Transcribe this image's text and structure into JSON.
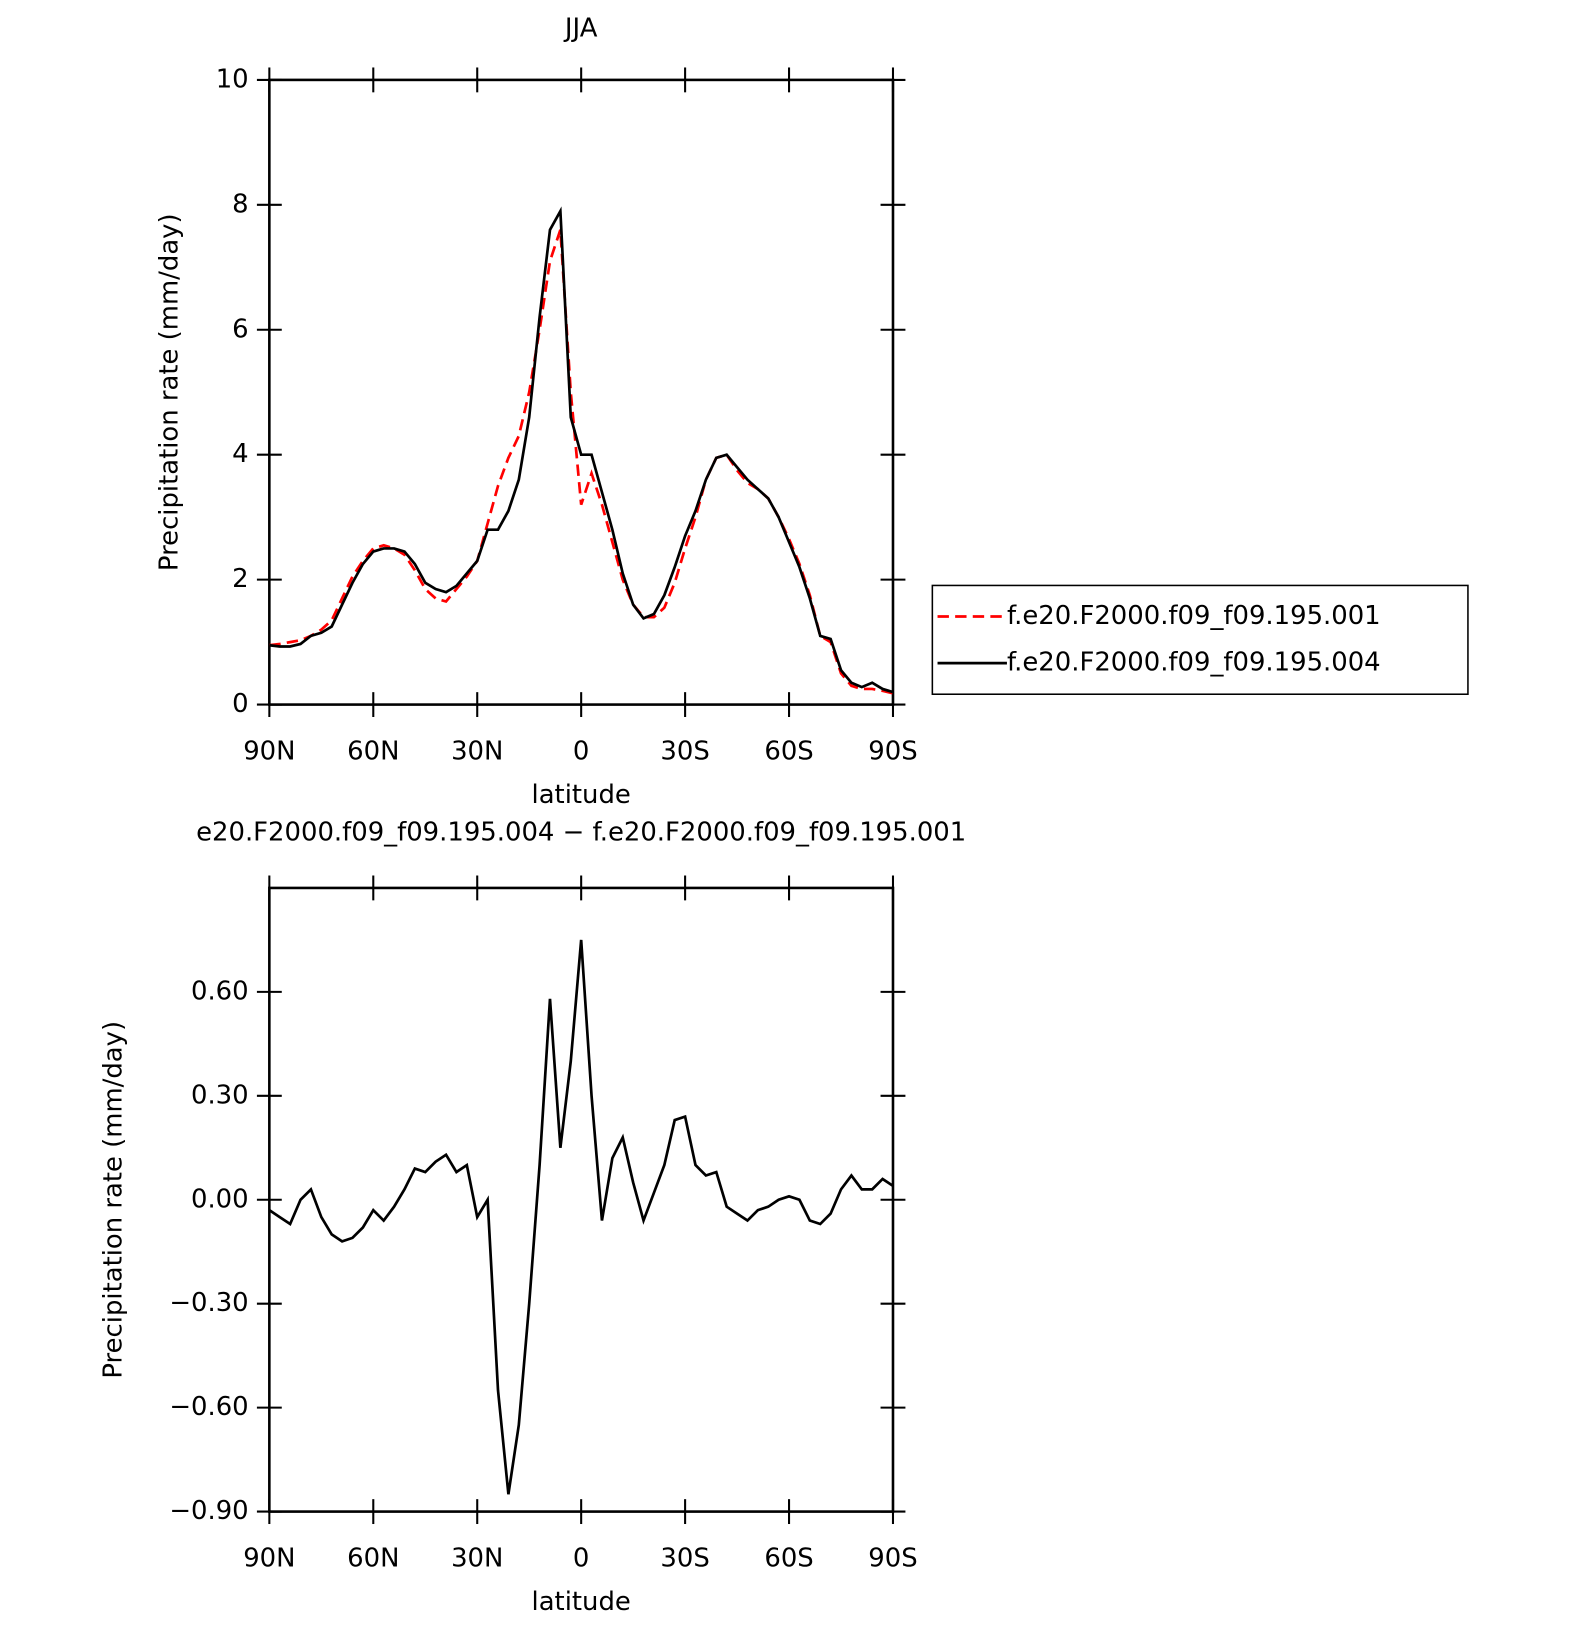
{
  "chart_data": [
    {
      "type": "line",
      "title": "JJA",
      "x_label": "latitude",
      "y_label": "Precipitation rate (mm/day)",
      "x": [
        90,
        87,
        84,
        81,
        78,
        75,
        72,
        69,
        66,
        63,
        60,
        57,
        54,
        51,
        48,
        45,
        42,
        39,
        36,
        33,
        30,
        27,
        24,
        21,
        18,
        15,
        12,
        9,
        6,
        3,
        0,
        -3,
        -6,
        -9,
        -12,
        -15,
        -18,
        -21,
        -24,
        -27,
        -30,
        -33,
        -36,
        -39,
        -42,
        -45,
        -48,
        -51,
        -54,
        -57,
        -60,
        -63,
        -66,
        -69,
        -72,
        -75,
        -78,
        -81,
        -84,
        -87,
        -90
      ],
      "xlim": [
        90,
        -90
      ],
      "xticks": [
        {
          "value": 90,
          "label": "90N"
        },
        {
          "value": 60,
          "label": "60N"
        },
        {
          "value": 30,
          "label": "30N"
        },
        0,
        {
          "value": -30,
          "label": "30S"
        },
        {
          "value": -60,
          "label": "60S"
        },
        {
          "value": -90,
          "label": "90S"
        }
      ],
      "ylim": [
        0,
        10
      ],
      "yticks": [
        0,
        2,
        4,
        6,
        8,
        10
      ],
      "series": [
        {
          "name": "f.e20.F2000.f09_f09.195.001",
          "color": "#ff0000",
          "dashed": true,
          "values": [
            0.95,
            0.97,
            1.0,
            1.03,
            1.1,
            1.2,
            1.35,
            1.7,
            2.05,
            2.3,
            2.5,
            2.55,
            2.5,
            2.4,
            2.15,
            1.85,
            1.7,
            1.65,
            1.85,
            2.05,
            2.3,
            2.9,
            3.5,
            3.95,
            4.3,
            5.0,
            6.0,
            7.1,
            7.6,
            5.0,
            3.2,
            3.7,
            3.2,
            2.6,
            2.0,
            1.6,
            1.4,
            1.4,
            1.55,
            1.95,
            2.5,
            3.0,
            3.6,
            3.95,
            4.0,
            3.75,
            3.55,
            3.45,
            3.3,
            3.0,
            2.65,
            2.25,
            1.75,
            1.1,
            1.0,
            0.5,
            0.3,
            0.25,
            0.25,
            0.22,
            0.18
          ]
        },
        {
          "name": "f.e20.F2000.f09_f09.195.004",
          "color": "#000000",
          "dashed": false,
          "values": [
            0.95,
            0.93,
            0.93,
            0.97,
            1.1,
            1.15,
            1.25,
            1.6,
            1.95,
            2.25,
            2.45,
            2.5,
            2.5,
            2.45,
            2.25,
            1.95,
            1.85,
            1.8,
            1.9,
            2.1,
            2.3,
            2.8,
            2.8,
            3.1,
            3.6,
            4.6,
            6.2,
            7.6,
            7.9,
            4.6,
            4.0,
            4.0,
            3.4,
            2.8,
            2.1,
            1.6,
            1.38,
            1.45,
            1.75,
            2.2,
            2.7,
            3.1,
            3.6,
            3.95,
            4.0,
            3.8,
            3.6,
            3.45,
            3.3,
            3.0,
            2.6,
            2.2,
            1.7,
            1.1,
            1.05,
            0.55,
            0.35,
            0.28,
            0.35,
            0.25,
            0.2
          ]
        }
      ]
    },
    {
      "type": "line",
      "title": "e20.F2000.f09_f09.195.004 − f.e20.F2000.f09_f09.195.001",
      "x_label": "latitude",
      "y_label": "Precipitation rate (mm/day)",
      "x": [
        90,
        87,
        84,
        81,
        78,
        75,
        72,
        69,
        66,
        63,
        60,
        57,
        54,
        51,
        48,
        45,
        42,
        39,
        36,
        33,
        30,
        27,
        24,
        21,
        18,
        15,
        12,
        9,
        6,
        3,
        0,
        -3,
        -6,
        -9,
        -12,
        -15,
        -18,
        -21,
        -24,
        -27,
        -30,
        -33,
        -36,
        -39,
        -42,
        -45,
        -48,
        -51,
        -54,
        -57,
        -60,
        -63,
        -66,
        -69,
        -72,
        -75,
        -78,
        -81,
        -84,
        -87,
        -90
      ],
      "xlim": [
        90,
        -90
      ],
      "xticks": [
        {
          "value": 90,
          "label": "90N"
        },
        {
          "value": 60,
          "label": "60N"
        },
        {
          "value": 30,
          "label": "30N"
        },
        0,
        {
          "value": -30,
          "label": "30S"
        },
        {
          "value": -60,
          "label": "60S"
        },
        {
          "value": -90,
          "label": "90S"
        }
      ],
      "ylim": [
        -0.9,
        0.9
      ],
      "yticks": [
        {
          "value": -0.9,
          "label": "−0.90"
        },
        {
          "value": -0.6,
          "label": "−0.60"
        },
        {
          "value": -0.3,
          "label": "−0.30"
        },
        {
          "value": 0,
          "label": "0.00"
        },
        {
          "value": 0.3,
          "label": "0.30"
        },
        {
          "value": 0.6,
          "label": "0.60"
        }
      ],
      "series": [
        {
          "color": "#000000",
          "dashed": false,
          "values": [
            -0.03,
            -0.05,
            -0.07,
            0.0,
            0.03,
            -0.05,
            -0.1,
            -0.12,
            -0.11,
            -0.08,
            -0.03,
            -0.06,
            -0.02,
            0.03,
            0.09,
            0.08,
            0.11,
            0.13,
            0.08,
            0.1,
            -0.05,
            0.0,
            -0.55,
            -0.85,
            -0.65,
            -0.3,
            0.1,
            0.58,
            0.15,
            0.4,
            0.75,
            0.3,
            -0.06,
            0.12,
            0.18,
            0.05,
            -0.06,
            0.02,
            0.1,
            0.23,
            0.24,
            0.1,
            0.07,
            0.08,
            -0.02,
            -0.04,
            -0.06,
            -0.03,
            -0.02,
            0.0,
            0.01,
            0.0,
            -0.06,
            -0.07,
            -0.04,
            0.03,
            0.07,
            0.03,
            0.03,
            0.06,
            0.04
          ]
        }
      ]
    }
  ]
}
